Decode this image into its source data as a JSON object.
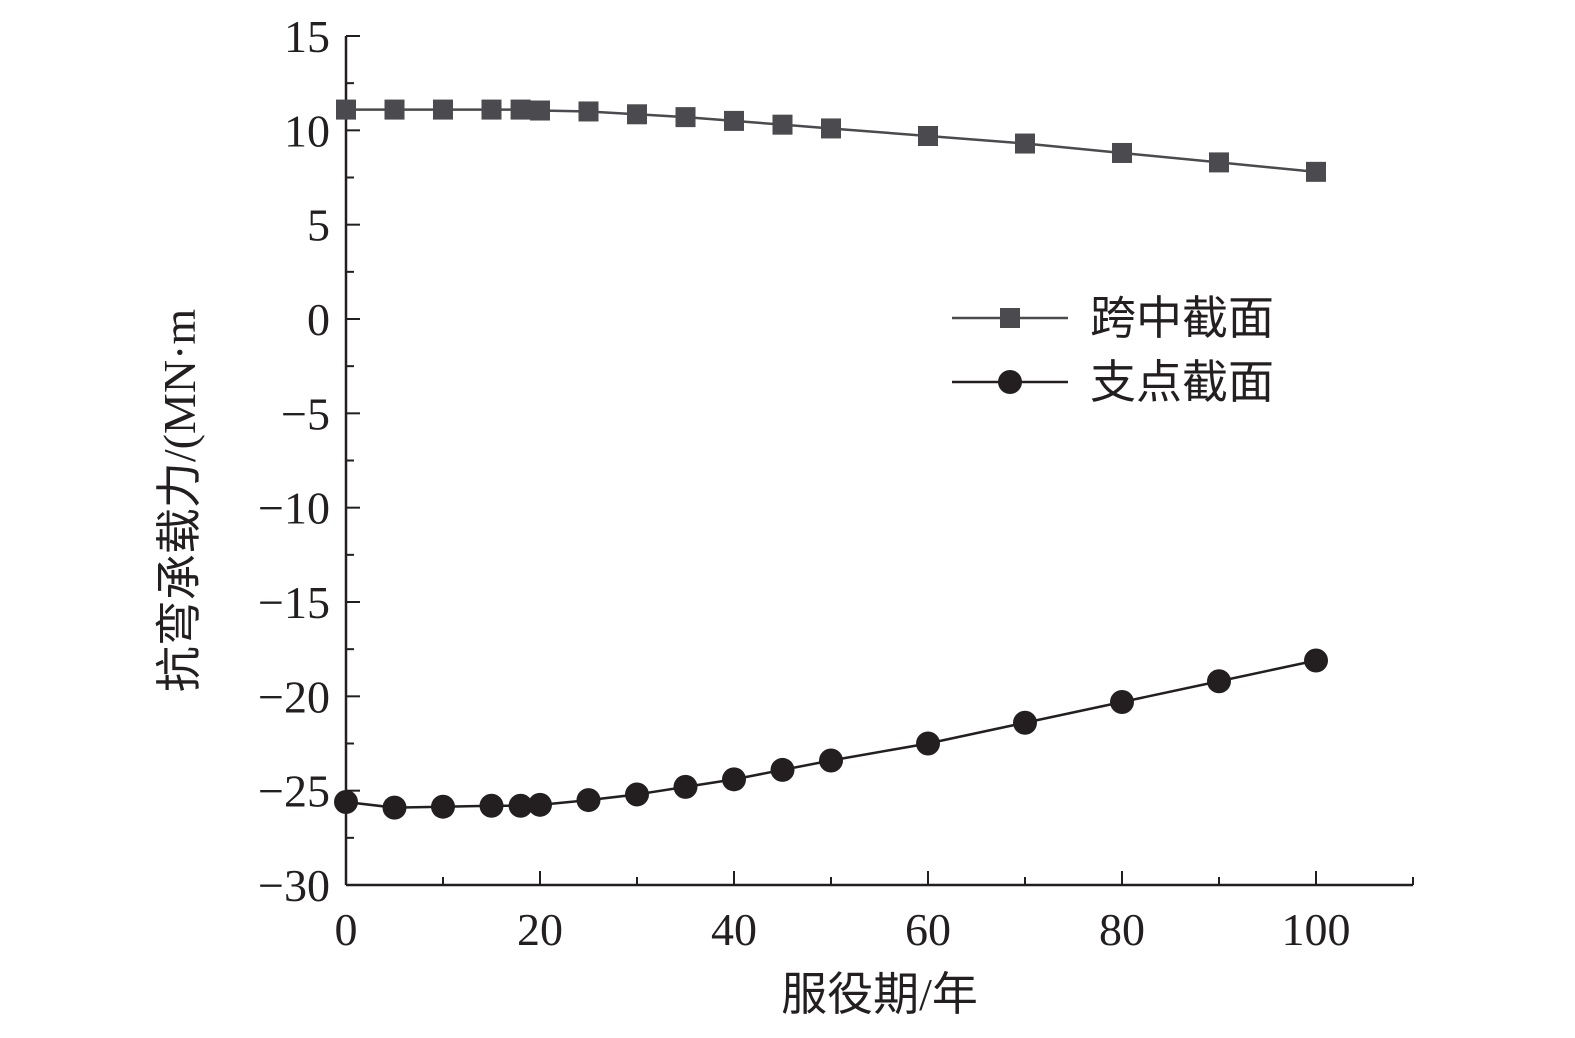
{
  "chart_data": {
    "type": "line",
    "title": "",
    "xlabel": "服役期/年",
    "ylabel": "抗弯承载力/(MN·m",
    "xlim": [
      0,
      110
    ],
    "ylim": [
      -30,
      15
    ],
    "xticks": [
      0,
      20,
      40,
      60,
      80,
      100
    ],
    "xtick_labels": [
      "0",
      "20",
      "40",
      "60",
      "80",
      "100"
    ],
    "yticks": [
      15,
      10,
      5,
      0,
      -5,
      -10,
      -15,
      -20,
      -25,
      -30
    ],
    "ytick_labels": [
      "15",
      "10",
      "5",
      "0",
      "−5",
      "−10",
      "−15",
      "−20",
      "−25",
      "−30"
    ],
    "grid": false,
    "legend_position": "right-middle",
    "series": [
      {
        "name": "跨中截面",
        "marker": "square",
        "color": "#4a4a4f",
        "x": [
          0,
          5,
          10,
          15,
          18,
          20,
          25,
          30,
          35,
          40,
          45,
          50,
          60,
          70,
          80,
          90,
          100
        ],
        "y": [
          11.1,
          11.1,
          11.1,
          11.1,
          11.1,
          11.05,
          11.0,
          10.85,
          10.7,
          10.5,
          10.3,
          10.1,
          9.7,
          9.3,
          8.8,
          8.3,
          7.8
        ]
      },
      {
        "name": "支点截面",
        "marker": "circle",
        "color": "#231f20",
        "x": [
          0,
          5,
          10,
          15,
          18,
          20,
          25,
          30,
          35,
          40,
          45,
          50,
          60,
          70,
          80,
          90,
          100
        ],
        "y": [
          -25.6,
          -25.9,
          -25.85,
          -25.8,
          -25.8,
          -25.75,
          -25.5,
          -25.2,
          -24.8,
          -24.4,
          -23.9,
          -23.4,
          -22.5,
          -21.4,
          -20.3,
          -19.2,
          -18.1
        ]
      }
    ]
  }
}
